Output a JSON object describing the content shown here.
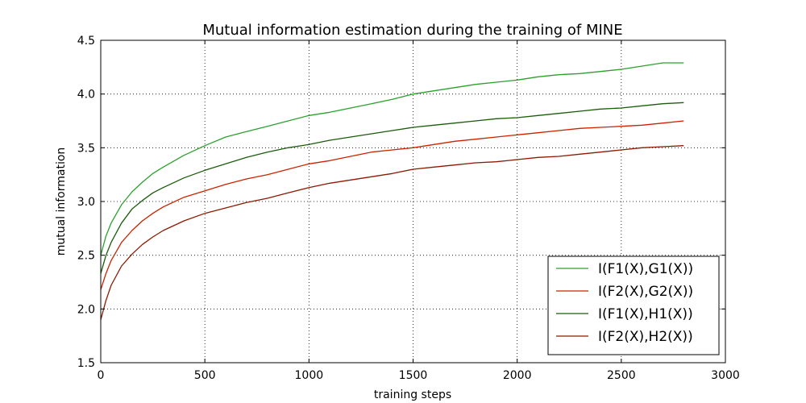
{
  "chart_data": {
    "type": "line",
    "title": "Mutual information estimation during the training of MINE",
    "xlabel": "training steps",
    "ylabel": "mutual information",
    "xlim": [
      0,
      3000
    ],
    "ylim": [
      1.5,
      4.5
    ],
    "xticks": [
      0,
      500,
      1000,
      1500,
      2000,
      2500,
      3000
    ],
    "yticks": [
      1.5,
      2.0,
      2.5,
      3.0,
      3.5,
      4.0,
      4.5
    ],
    "grid": true,
    "legend_position": "lower-right",
    "x": [
      0,
      25,
      50,
      100,
      150,
      200,
      250,
      300,
      400,
      500,
      600,
      700,
      800,
      900,
      1000,
      1100,
      1200,
      1300,
      1400,
      1500,
      1600,
      1700,
      1800,
      1900,
      2000,
      2100,
      2200,
      2300,
      2400,
      2500,
      2600,
      2700,
      2800
    ],
    "series": [
      {
        "name": "I(F1(X),G1(X))",
        "color": "#2ca02c",
        "values": [
          2.5,
          2.68,
          2.8,
          2.97,
          3.09,
          3.18,
          3.26,
          3.32,
          3.43,
          3.52,
          3.6,
          3.65,
          3.7,
          3.75,
          3.8,
          3.83,
          3.87,
          3.91,
          3.95,
          4.0,
          4.03,
          4.06,
          4.09,
          4.11,
          4.13,
          4.16,
          4.18,
          4.19,
          4.21,
          4.23,
          4.26,
          4.29,
          4.29
        ]
      },
      {
        "name": "I(F2(X),G2(X))",
        "color": "#cc2200",
        "values": [
          2.18,
          2.33,
          2.45,
          2.62,
          2.73,
          2.82,
          2.89,
          2.95,
          3.04,
          3.1,
          3.16,
          3.21,
          3.25,
          3.3,
          3.35,
          3.38,
          3.42,
          3.46,
          3.48,
          3.5,
          3.53,
          3.56,
          3.58,
          3.6,
          3.62,
          3.64,
          3.66,
          3.68,
          3.69,
          3.7,
          3.71,
          3.73,
          3.75
        ]
      },
      {
        "name": "I(F1(X),H1(X))",
        "color": "#1a5c0a",
        "values": [
          2.33,
          2.5,
          2.62,
          2.8,
          2.93,
          3.01,
          3.08,
          3.13,
          3.22,
          3.29,
          3.35,
          3.41,
          3.46,
          3.5,
          3.53,
          3.57,
          3.6,
          3.63,
          3.66,
          3.69,
          3.71,
          3.73,
          3.75,
          3.77,
          3.78,
          3.8,
          3.82,
          3.84,
          3.86,
          3.87,
          3.89,
          3.91,
          3.92
        ]
      },
      {
        "name": "I(F2(X),H2(X))",
        "color": "#8b1a00",
        "values": [
          1.9,
          2.08,
          2.22,
          2.4,
          2.51,
          2.6,
          2.67,
          2.73,
          2.82,
          2.89,
          2.94,
          2.99,
          3.03,
          3.08,
          3.13,
          3.17,
          3.2,
          3.23,
          3.26,
          3.3,
          3.32,
          3.34,
          3.36,
          3.37,
          3.39,
          3.41,
          3.42,
          3.44,
          3.46,
          3.48,
          3.5,
          3.51,
          3.52
        ]
      }
    ]
  }
}
